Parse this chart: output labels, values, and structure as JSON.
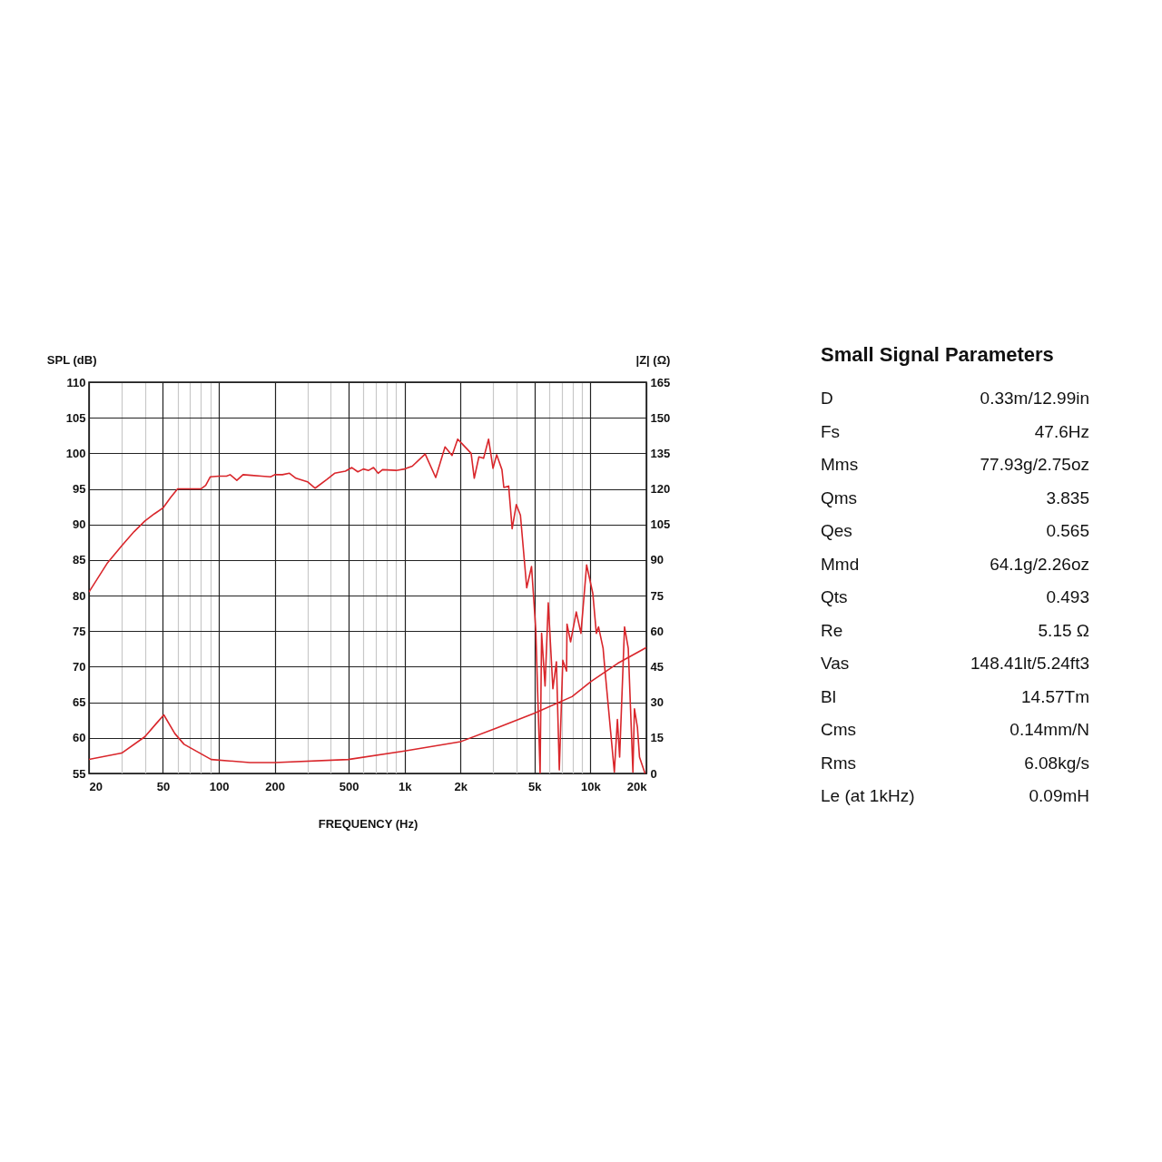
{
  "chart_data": [
    {
      "type": "line",
      "xlabel": "FREQUENCY (Hz)",
      "ylabel": "SPL (dB)",
      "y2label": "|Z| (Ω)",
      "log": "x",
      "grid": true,
      "xlim": [
        20,
        20000
      ],
      "xticks": [
        20,
        {
          "value": 30,
          "label": null
        },
        {
          "value": 40,
          "label": null
        },
        50,
        {
          "value": 60,
          "label": null
        },
        {
          "value": 70,
          "label": null
        },
        {
          "value": 80,
          "label": null
        },
        {
          "value": 90,
          "label": null
        },
        100,
        200,
        {
          "value": 300,
          "label": null
        },
        {
          "value": 400,
          "label": null
        },
        500,
        {
          "value": 600,
          "label": null
        },
        {
          "value": 700,
          "label": null
        },
        {
          "value": 800,
          "label": null
        },
        {
          "value": 900,
          "label": null
        },
        {
          "value": 1000,
          "label": "1k"
        },
        {
          "value": 2000,
          "label": "2k"
        },
        {
          "value": 3000,
          "label": null
        },
        {
          "value": 4000,
          "label": null
        },
        {
          "value": 5000,
          "label": "5k"
        },
        {
          "value": 6000,
          "label": null
        },
        {
          "value": 7000,
          "label": null
        },
        {
          "value": 8000,
          "label": null
        },
        {
          "value": 9000,
          "label": null
        },
        {
          "value": 10000,
          "label": "10k"
        },
        {
          "value": 20000,
          "label": "20k"
        }
      ],
      "ylim": [
        55,
        110
      ],
      "yticks": [
        55,
        60,
        65,
        70,
        75,
        80,
        85,
        90,
        95,
        100,
        105,
        110
      ],
      "y2lim": [
        0,
        165
      ],
      "y2ticks": [
        0,
        15,
        30,
        45,
        60,
        75,
        90,
        105,
        120,
        135,
        150,
        165
      ],
      "series": [
        {
          "color": "#d9262b",
          "x": [
            20,
            25,
            30,
            35,
            40,
            45,
            50,
            55,
            60,
            70,
            80,
            85,
            90,
            100,
            110,
            115,
            125,
            135,
            150,
            170,
            190,
            200,
            220,
            240,
            260,
            300,
            330,
            380,
            420,
            480,
            520,
            560,
            600,
            640,
            680,
            720,
            760,
            900,
            1000,
            1100,
            1290,
            1470,
            1650,
            1800,
            1930,
            2280,
            2370,
            2510,
            2660,
            2830,
            2990,
            3130,
            3340,
            3420,
            3630,
            3790,
            3990,
            4200,
            4540,
            4820,
            5080,
            5360,
            5460,
            5700,
            5930,
            6280,
            6560,
            6800,
            7100,
            7440,
            7480,
            7820,
            8390,
            8890,
            9540,
            10300,
            10760,
            11060,
            11700,
            11920,
            13450,
            13970,
            14360,
            15260,
            15980,
            16930,
            17250,
            17900,
            18370,
            19670
          ],
          "values": [
            80.5,
            84.5,
            87,
            89,
            90.5,
            91.5,
            92.3,
            93.8,
            95,
            95,
            95,
            95.5,
            96.7,
            96.8,
            96.8,
            97,
            96.2,
            97,
            96.9,
            96.8,
            96.7,
            97,
            97,
            97.2,
            96.5,
            96,
            95.1,
            96.3,
            97.2,
            97.5,
            98,
            97.4,
            97.8,
            97.6,
            98,
            97.2,
            97.7,
            97.6,
            97.8,
            98.2,
            99.9,
            96.6,
            100.9,
            99.7,
            102,
            100,
            96.5,
            99.5,
            99.3,
            102,
            97.9,
            99.8,
            97.7,
            95.2,
            95.4,
            89.4,
            92.8,
            91.3,
            81.1,
            84.1,
            75.2,
            55,
            74.7,
            67.3,
            79,
            66.9,
            70.7,
            55.5,
            70.9,
            69.4,
            76,
            73.5,
            77.7,
            74.7,
            84.3,
            80.3,
            74.7,
            75.6,
            72.6,
            70.1,
            55.2,
            62.6,
            57.3,
            75.6,
            72.6,
            55.2,
            64.1,
            61.5,
            57.3,
            55
          ]
        },
        {
          "color": "#d9262b",
          "axis": "y2",
          "x": [
            20,
            30,
            40,
            46,
            50.6,
            58,
            65,
            91,
            147,
            200,
            497,
            1000,
            2000,
            3100,
            4980,
            7960,
            10080,
            14000,
            20000
          ],
          "values": [
            5.9,
            8.6,
            15.5,
            21,
            24.7,
            16.8,
            12.3,
            5.9,
            4.6,
            4.6,
            5.9,
            9.5,
            13.4,
            19,
            25.4,
            32.4,
            38.8,
            46.4,
            53.1
          ]
        }
      ]
    },
    {
      "type": "other",
      "title": "Small Signal Parameters",
      "categories": [
        "D",
        "Fs",
        "Mms",
        "Qms",
        "Qes",
        "Mmd",
        "Qts",
        "Re",
        "Vas",
        "Bl",
        "Cms",
        "Rms",
        "Le (at 1kHz)"
      ],
      "annotations": [
        "0.33m/12.99in",
        "47.6Hz",
        "77.93g/2.75oz",
        "3.835",
        "0.565",
        "64.1g/2.26oz",
        "0.493",
        "5.15 Ω",
        "148.41lt/5.24ft3",
        "14.57Tm",
        "0.14mm/N",
        "6.08kg/s",
        "0.09mH"
      ]
    }
  ]
}
